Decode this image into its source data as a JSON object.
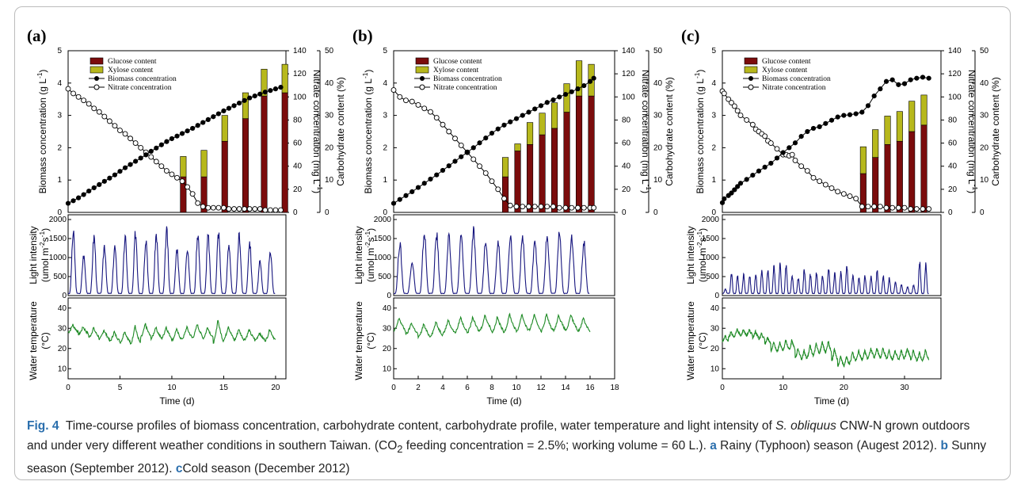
{
  "colors": {
    "glucose": "#7b0c0c",
    "xylose": "#b7b81c",
    "light": "#16157e",
    "temperature": "#1d8a24",
    "caption_accent": "#2b6fad"
  },
  "caption": {
    "label": "Fig. 4",
    "text_1": "Time-course profiles of biomass concentration, carbohydrate content, carbohydrate profile, water temperature and light intensity of ",
    "species": "S. obliquus",
    "text_2": " CNW-N grown outdoors and under very different weather conditions in southern Taiwan. (CO",
    "sub": "2",
    "text_3": " feeding concentration = 2.5%; working volume = 60 L.). ",
    "a_label": "a",
    "a_text": " Rainy (Typhoon) season (Augest 2012). ",
    "b_label": "b",
    "b_text": " Sunny season (September 2012). ",
    "c_label": "c",
    "c_text": "Cold season (December 2012)"
  },
  "common": {
    "xlabel": "Time (d)",
    "y_biomass_label": "Biomass concentration (g L",
    "y_biomass_sup": "-1",
    "y_biomass_close": ")",
    "y_nitrate_label": "Nitrate concentration (mg L",
    "y_nitrate_sup": "-1",
    "y_nitrate_close": ")",
    "y_carb_label": "Carbohydrate content (%)",
    "y_light_label_1": "Light intensity",
    "y_light_label_2": "(umol m",
    "y_light_sup1": "-2",
    "y_light_mid": "s",
    "y_light_sup2": "-1",
    "y_light_close": ")",
    "y_temp_label_1": "Water temperature",
    "y_temp_label_2": "(°C)",
    "legend": [
      "Glucose content",
      "Xylose content",
      "Biomass concentration",
      "Nitrate concentration"
    ]
  },
  "chart_data": [
    {
      "panel": "(a)",
      "type": "combo",
      "xlim": [
        0,
        21
      ],
      "xticks": [
        0,
        5,
        10,
        15,
        20
      ],
      "ylim_biomass": [
        0,
        5
      ],
      "ylim_nitrate": [
        0,
        140
      ],
      "ylim_carb": [
        0,
        50
      ],
      "bars_x": [
        11.1,
        13.1,
        15.1,
        17.1,
        18.9,
        20.9
      ],
      "glucose": [
        11,
        11,
        22,
        29,
        36,
        37
      ],
      "xylose": [
        6.3,
        8.2,
        8,
        8,
        8.3,
        8.8
      ],
      "biomass": {
        "x": [
          0,
          0.5,
          1,
          1.5,
          2,
          2.5,
          3,
          3.5,
          4,
          4.5,
          5,
          5.5,
          6,
          6.5,
          7,
          7.5,
          8,
          8.5,
          9,
          9.5,
          10,
          10.5,
          11,
          11.5,
          12,
          12.5,
          13,
          13.5,
          14,
          14.5,
          15,
          15.5,
          16,
          16.5,
          17,
          17.5,
          18,
          18.5,
          19,
          19.5,
          20,
          20.5
        ],
        "y": [
          0.28,
          0.36,
          0.45,
          0.55,
          0.66,
          0.76,
          0.86,
          0.96,
          1.06,
          1.16,
          1.27,
          1.38,
          1.48,
          1.58,
          1.68,
          1.78,
          1.89,
          1.99,
          2.09,
          2.19,
          2.28,
          2.36,
          2.44,
          2.52,
          2.6,
          2.69,
          2.78,
          2.87,
          2.96,
          3.05,
          3.14,
          3.22,
          3.3,
          3.38,
          3.46,
          3.54,
          3.6,
          3.66,
          3.72,
          3.77,
          3.82,
          3.87
        ]
      },
      "nitrate": {
        "x": [
          0,
          0.5,
          1,
          1.5,
          2,
          2.5,
          3,
          3.5,
          4,
          4.5,
          5,
          5.5,
          6,
          6.5,
          7,
          7.5,
          8,
          8.5,
          9,
          9.5,
          10,
          10.5,
          11,
          11.5,
          12,
          12.5,
          13,
          13.5,
          14,
          14.5,
          15,
          15.5,
          16,
          16.5,
          17,
          17.5,
          18,
          18.5,
          19,
          19.5,
          20,
          20.5
        ],
        "y": [
          107,
          103,
          100,
          97,
          94,
          90,
          87,
          83,
          79,
          75,
          71,
          68,
          64,
          60,
          56,
          52,
          48,
          44,
          40,
          36,
          33,
          30,
          27,
          22,
          16,
          8,
          5,
          4,
          4,
          4,
          4,
          3,
          3,
          3,
          3,
          3,
          3,
          3,
          2,
          2,
          2,
          2
        ]
      },
      "light_ylim": [
        0,
        2000
      ],
      "light_yticks": [
        0,
        500,
        1000,
        1500,
        2000
      ],
      "light_days": 20,
      "light_peaks": [
        1800,
        1150,
        1700,
        1450,
        1400,
        1650,
        1800,
        1650,
        1750,
        1850,
        1350,
        1400,
        1800,
        1700,
        1800,
        1500,
        1750,
        1550,
        950,
        1300
      ],
      "temp_ylim": [
        5,
        45
      ],
      "temp_yticks": [
        10,
        20,
        30,
        40
      ],
      "temp_days": 20,
      "temp_mean": [
        30,
        29,
        28,
        27,
        26,
        26,
        27,
        29,
        28,
        28,
        27,
        28,
        29,
        28,
        29,
        28,
        27,
        27,
        26,
        27
      ],
      "temp_amp": [
        4,
        4,
        5,
        5,
        5,
        6,
        10,
        7,
        6,
        6,
        6,
        6,
        7,
        6,
        12,
        7,
        6,
        5,
        4,
        6
      ]
    },
    {
      "panel": "(b)",
      "type": "combo",
      "xlim": [
        0,
        18
      ],
      "xticks": [
        0,
        2,
        4,
        6,
        8,
        10,
        12,
        14,
        16,
        18
      ],
      "ylim_biomass": [
        0,
        5
      ],
      "ylim_nitrate": [
        0,
        140
      ],
      "ylim_carb": [
        0,
        50
      ],
      "bars_x": [
        9.1,
        10.1,
        11.1,
        12.1,
        13.1,
        14.1,
        15.1,
        16.1
      ],
      "glucose": [
        11,
        19,
        21,
        24,
        26,
        31,
        36,
        36
      ],
      "xylose": [
        6,
        2.2,
        6.8,
        6.7,
        7.9,
        8.8,
        10.9,
        9.8
      ],
      "biomass": {
        "x": [
          0,
          0.5,
          1,
          1.5,
          2,
          2.5,
          3,
          3.5,
          4,
          4.5,
          5,
          5.5,
          6,
          6.5,
          7,
          7.5,
          8,
          8.5,
          9,
          9.5,
          10,
          10.5,
          11,
          11.5,
          12,
          12.5,
          13,
          13.5,
          14,
          14.5,
          15,
          15.5,
          16,
          16.3
        ],
        "y": [
          0.28,
          0.4,
          0.52,
          0.64,
          0.77,
          0.9,
          1.03,
          1.16,
          1.3,
          1.44,
          1.58,
          1.72,
          1.86,
          2.0,
          2.15,
          2.3,
          2.45,
          2.58,
          2.7,
          2.8,
          2.9,
          3.0,
          3.1,
          3.2,
          3.3,
          3.4,
          3.48,
          3.57,
          3.65,
          3.73,
          3.82,
          3.92,
          4.05,
          4.15
        ]
      },
      "nitrate": {
        "x": [
          0,
          0.5,
          1,
          1.5,
          2,
          2.5,
          3,
          3.5,
          4,
          4.5,
          5,
          5.5,
          6,
          6.5,
          7,
          7.5,
          8,
          8.5,
          9,
          9.5,
          10,
          10.5,
          11,
          11.5,
          12,
          12.5,
          13,
          13.5,
          14,
          14.5,
          15,
          15.5,
          16,
          16.3
        ],
        "y": [
          106,
          100,
          97,
          96,
          93,
          90,
          87,
          82,
          76,
          70,
          64,
          58,
          52,
          46,
          40,
          34,
          27,
          20,
          12,
          6,
          5,
          5,
          5,
          5,
          5,
          5,
          5,
          4,
          4,
          4,
          4,
          4,
          4,
          4
        ]
      },
      "light_ylim": [
        0,
        2000
      ],
      "light_yticks": [
        0,
        500,
        1000,
        1500,
        2000
      ],
      "light_days": 16,
      "light_peaks": [
        1500,
        1000,
        1800,
        1750,
        1650,
        1700,
        1850,
        1650,
        1550,
        1700,
        1700,
        1650,
        1700,
        1800,
        1750,
        1550
      ],
      "temp_ylim": [
        5,
        45
      ],
      "temp_yticks": [
        10,
        20,
        30,
        40
      ],
      "temp_days": 16,
      "temp_mean": [
        32,
        30,
        29,
        30,
        31,
        32,
        32,
        33,
        32,
        33,
        33,
        33,
        33,
        33,
        33,
        32
      ],
      "temp_amp": [
        7,
        6,
        7,
        7,
        7,
        8,
        8,
        8,
        8,
        9,
        9,
        8,
        9,
        8,
        8,
        7
      ]
    },
    {
      "panel": "(c)",
      "type": "combo",
      "xlim": [
        0,
        36
      ],
      "xticks": [
        0,
        10,
        20,
        30
      ],
      "ylim_biomass": [
        0,
        5
      ],
      "ylim_nitrate": [
        0,
        140
      ],
      "ylim_carb": [
        0,
        50
      ],
      "bars_x": [
        23.2,
        25.2,
        27.2,
        29.2,
        31.2,
        33.2
      ],
      "glucose": [
        12,
        17,
        21,
        22,
        25,
        27
      ],
      "xylose": [
        8.3,
        8.6,
        8.8,
        9.2,
        9.4,
        9.3
      ],
      "biomass": {
        "x": [
          0,
          0.3,
          1,
          1.5,
          2,
          2.5,
          3,
          4,
          5,
          6,
          7,
          8,
          9,
          10,
          11,
          12,
          13,
          14,
          15,
          16,
          17,
          18,
          19,
          20,
          21,
          22,
          23,
          24,
          25,
          26,
          27,
          28,
          29,
          30,
          31,
          32,
          33,
          34
        ],
        "y": [
          0.3,
          0.42,
          0.52,
          0.6,
          0.7,
          0.8,
          0.9,
          1.02,
          1.15,
          1.28,
          1.4,
          1.52,
          1.68,
          1.85,
          2.0,
          2.15,
          2.35,
          2.5,
          2.6,
          2.65,
          2.75,
          2.85,
          2.95,
          3.0,
          3.02,
          3.05,
          3.1,
          3.3,
          3.6,
          3.82,
          4.05,
          4.1,
          3.95,
          3.98,
          4.1,
          4.15,
          4.18,
          4.15
        ]
      },
      "nitrate": {
        "x": [
          0,
          0.3,
          1,
          1.5,
          2,
          2.5,
          3,
          4,
          5,
          5.5,
          6,
          6.5,
          7,
          7.5,
          8,
          9,
          10,
          10.5,
          11,
          11.5,
          12,
          13,
          14,
          15,
          16,
          17,
          18,
          19,
          20,
          21,
          22,
          23,
          24,
          25,
          26,
          27,
          28,
          29,
          30,
          31,
          32,
          33,
          34
        ],
        "y": [
          105,
          103,
          98,
          95,
          92,
          88,
          84,
          80,
          76,
          72,
          70,
          68,
          66,
          62,
          60,
          55,
          50,
          50,
          49,
          50,
          45,
          40,
          36,
          30,
          27,
          24,
          21,
          18,
          16,
          14,
          12,
          5,
          5,
          5,
          5,
          4,
          4,
          4,
          4,
          3,
          3,
          3,
          3
        ]
      },
      "light_ylim": [
        0,
        2000
      ],
      "light_yticks": [
        0,
        500,
        1000,
        1500,
        2000
      ],
      "light_days": 34,
      "light_peaks": [
        180,
        620,
        560,
        600,
        560,
        600,
        700,
        760,
        850,
        880,
        880,
        560,
        500,
        750,
        600,
        640,
        560,
        760,
        620,
        660,
        840,
        580,
        500,
        560,
        540,
        720,
        560,
        500,
        400,
        300,
        250,
        300,
        1000,
        900
      ],
      "temp_ylim": [
        5,
        45
      ],
      "temp_yticks": [
        10,
        20,
        30,
        40
      ],
      "temp_days": 34,
      "temp_mean": [
        25,
        27,
        28,
        28,
        28,
        27,
        26,
        24,
        21,
        21,
        22,
        22,
        18,
        17,
        19,
        20,
        21,
        21,
        17,
        14,
        14,
        16,
        17,
        17,
        18,
        18,
        18,
        17,
        17,
        17,
        18,
        17,
        16,
        17
      ],
      "temp_amp": [
        3,
        3,
        3,
        3,
        3,
        3,
        3,
        3,
        4,
        5,
        5,
        5,
        5,
        5,
        6,
        6,
        6,
        6,
        6,
        5,
        5,
        5,
        5,
        5,
        5,
        5,
        5,
        5,
        5,
        5,
        5,
        5,
        5,
        5
      ]
    }
  ]
}
